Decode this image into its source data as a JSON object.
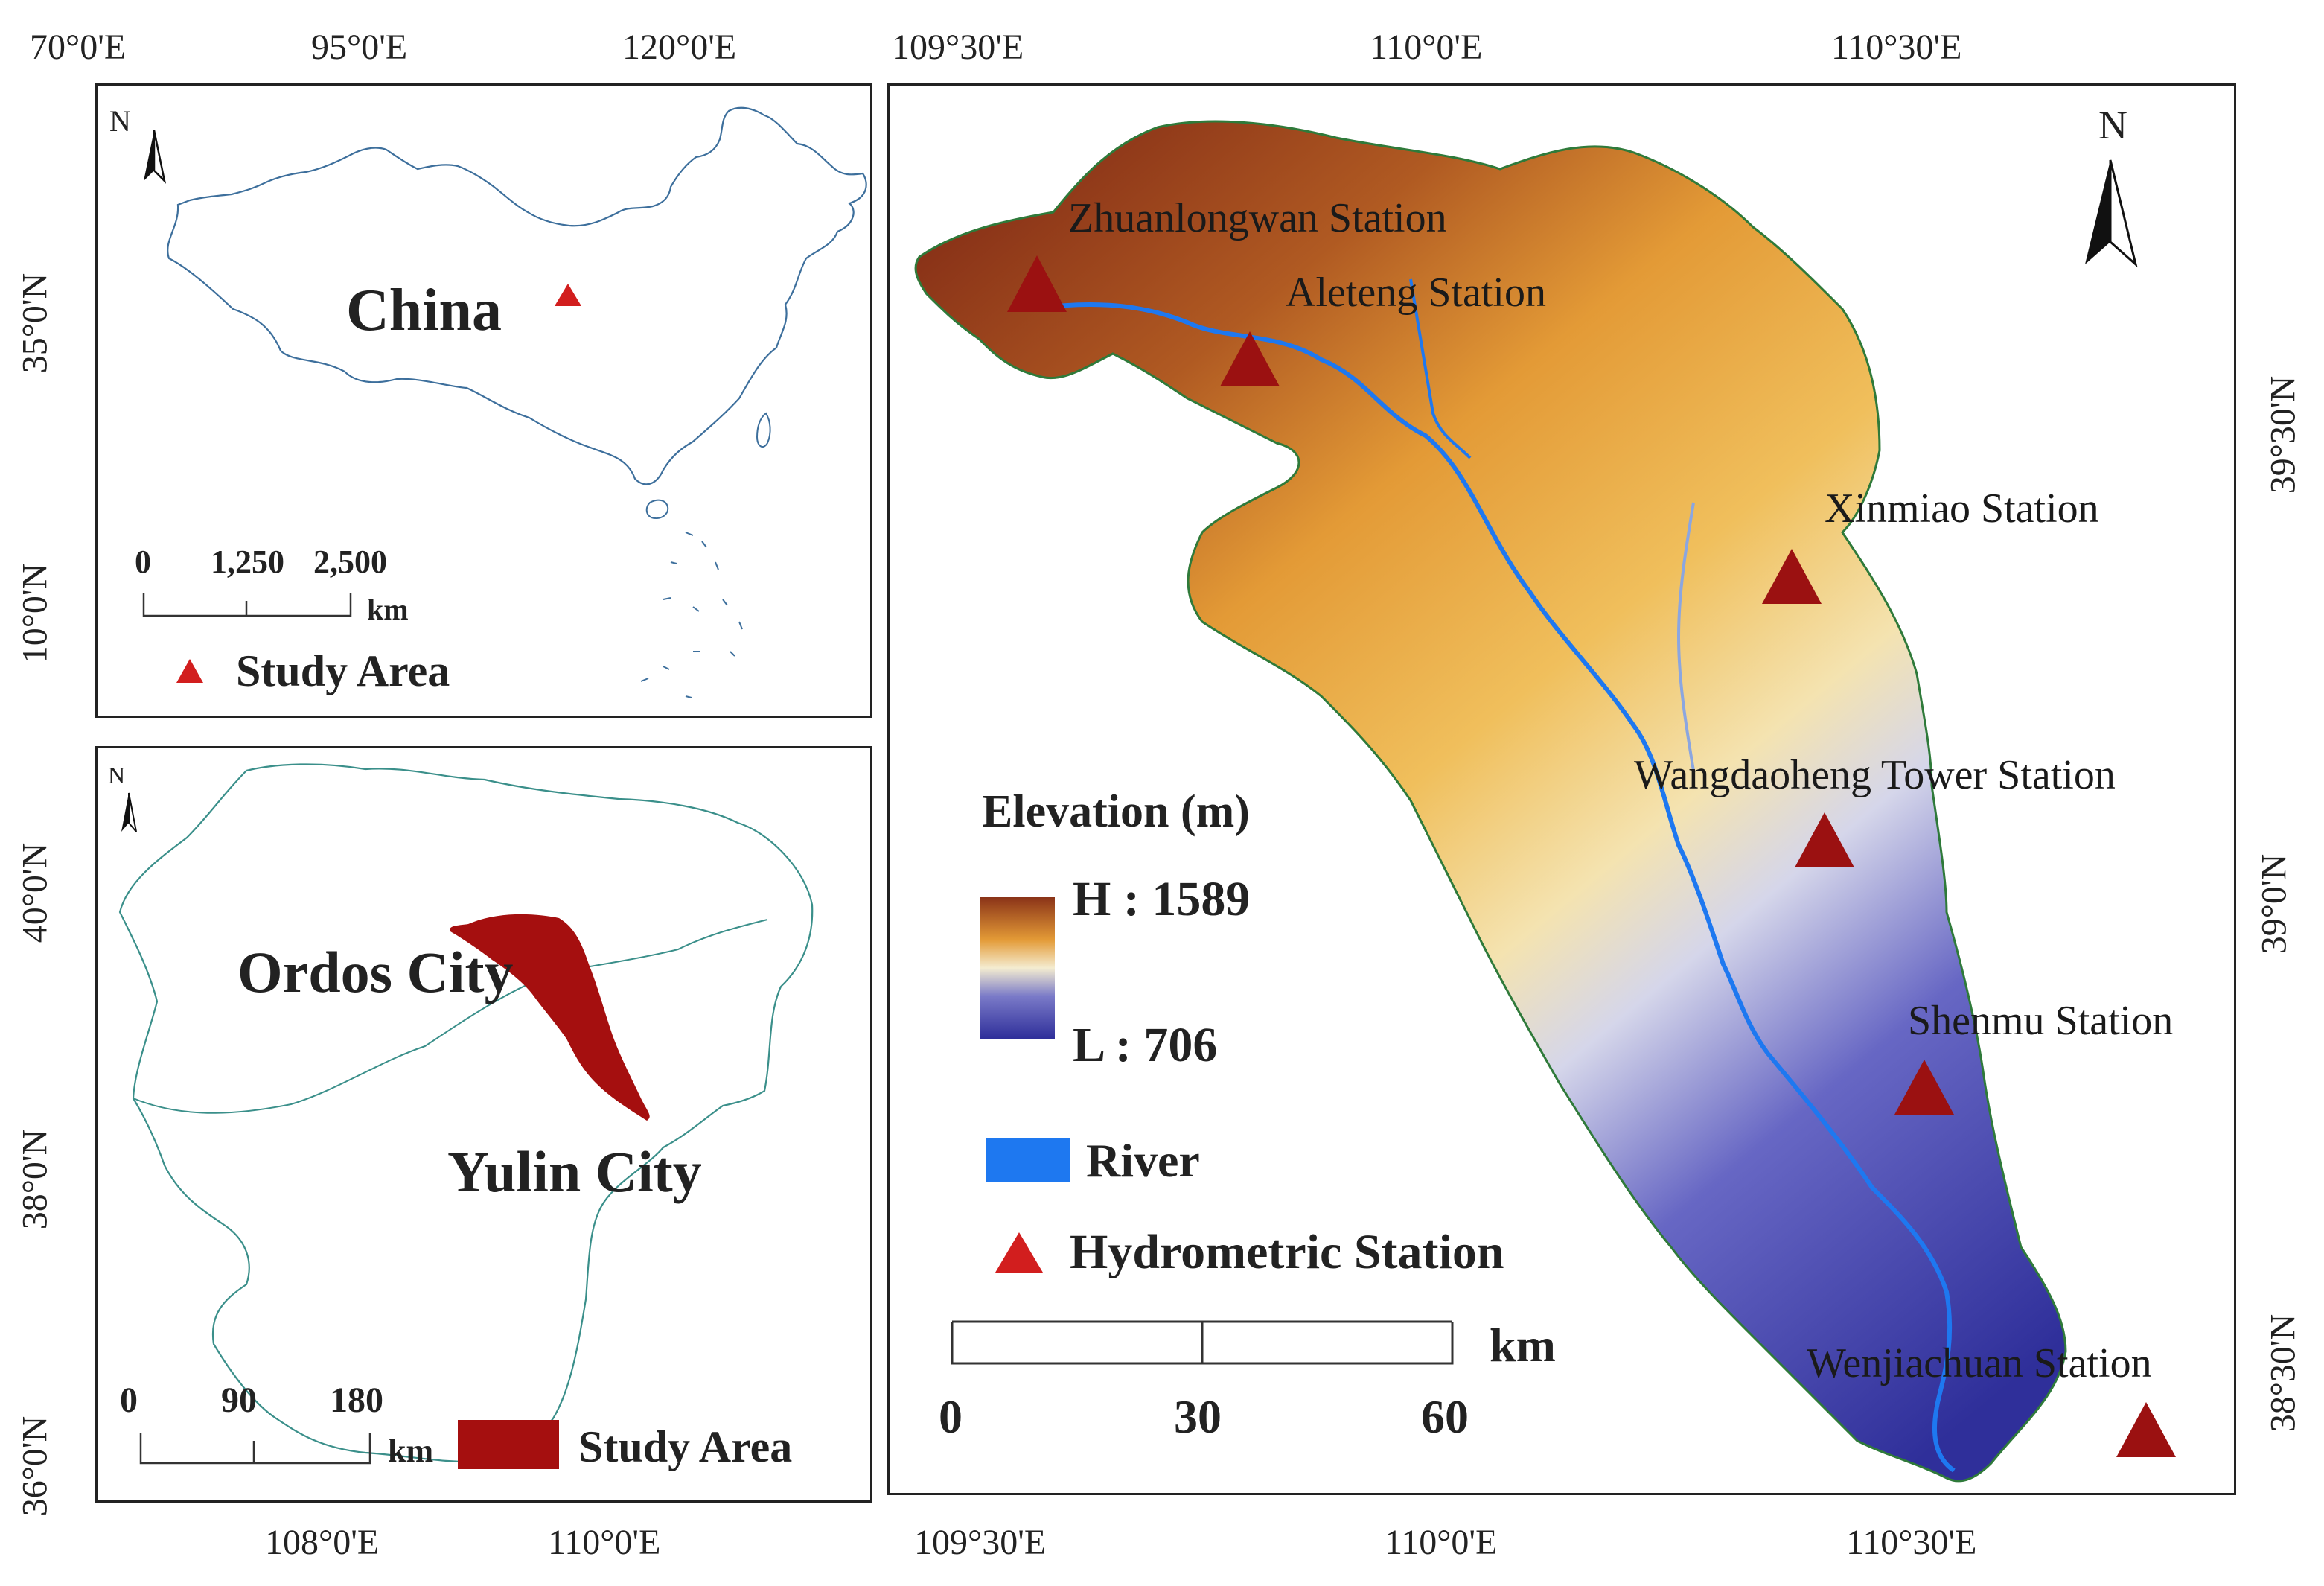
{
  "inset_china": {
    "top_ticks": [
      "70°0'E",
      "95°0'E",
      "120°0'E"
    ],
    "left_ticks": [
      "35°0'N",
      "10°0'N"
    ],
    "country_label": "China",
    "north": "N",
    "scale_ticks": [
      "0",
      "1,250",
      "2,500"
    ],
    "scale_unit": "km",
    "legend_label": "Study Area"
  },
  "inset_region": {
    "left_ticks": [
      "40°0'N",
      "38°0'N",
      "36°0'N"
    ],
    "bottom_ticks": [
      "108°0'E",
      "110°0'E"
    ],
    "north": "N",
    "city_labels": [
      "Ordos City",
      "Yulin City"
    ],
    "scale_ticks": [
      "0",
      "90",
      "180"
    ],
    "scale_unit": "km",
    "legend_label": "Study Area"
  },
  "main_map": {
    "top_ticks": [
      "109°30'E",
      "110°0'E",
      "110°30'E"
    ],
    "bottom_ticks": [
      "109°30'E",
      "110°0'E",
      "110°30'E"
    ],
    "right_ticks": [
      "39°30'N",
      "39°0'N",
      "38°30'N"
    ],
    "north": "N",
    "stations": [
      "Zhuanlongwan Station",
      "Aleteng Station",
      "Xinmiao Station",
      "Wangdaoheng Tower Station",
      "Shenmu Station",
      "Wenjiachuan Station"
    ],
    "legend": {
      "elevation_title": "Elevation (m)",
      "high": "H : 1589",
      "low": "L : 706",
      "river": "River",
      "station": "Hydrometric Station"
    },
    "scale_ticks": [
      "0",
      "30",
      "60"
    ],
    "scale_unit": "km"
  },
  "colors": {
    "study_area": "#a50f0f",
    "marker": "#d21e1e",
    "station_marker": "#9b1111",
    "river": "#1e78f0",
    "elev_high": "#8a3318",
    "elev_mid": "#e9a33c",
    "elev_white": "#f4f1e6",
    "elev_low": "#2f2f9a"
  }
}
